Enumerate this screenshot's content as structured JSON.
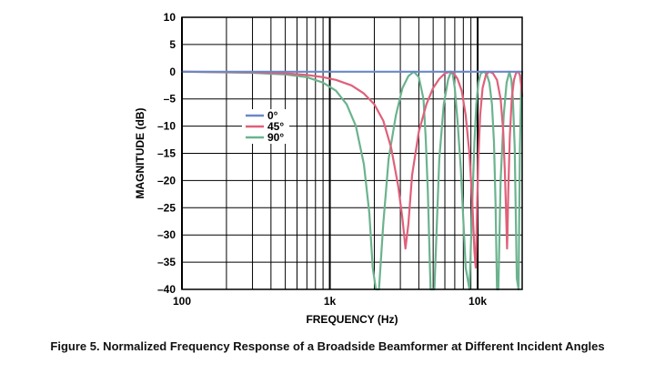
{
  "caption": "Figure 5. Normalized Frequency Response of a Broadside Beamformer at Different Incident Angles",
  "chart_data": {
    "type": "line",
    "xlabel": "FREQUENCY (Hz)",
    "ylabel": "MAGNITUDE (dB)",
    "xscale": "log",
    "xlim": [
      100,
      20000
    ],
    "ylim": [
      -40,
      10
    ],
    "grid": true,
    "legend_position": "center-left",
    "x_tick_labels": [
      {
        "value": 100,
        "label": "100"
      },
      {
        "value": 1000,
        "label": "1k"
      },
      {
        "value": 10000,
        "label": "10k"
      }
    ],
    "y_ticks": [
      10,
      5,
      0,
      -5,
      -10,
      -15,
      -20,
      -25,
      -30,
      -35,
      -40
    ],
    "y_tick_labels": [
      "10",
      "5",
      "0",
      "–5",
      "–10",
      "–15",
      "–20",
      "–25",
      "–30",
      "–35",
      "–40"
    ],
    "series": [
      {
        "name": "0°",
        "color": "#6a88c8",
        "x": [
          100,
          20000
        ],
        "y": [
          0,
          0
        ]
      },
      {
        "name": "45°",
        "color": "#e0607a",
        "x": [
          100,
          300,
          500,
          700,
          900,
          1100,
          1400,
          1700,
          2000,
          2300,
          2600,
          2900,
          3100,
          3250,
          3400,
          3600,
          4000,
          4500,
          5000,
          5500,
          6000,
          6500,
          6900,
          7300,
          7800,
          8300,
          8800,
          9200,
          9500,
          9700,
          9800,
          9900,
          10100,
          10400,
          10800,
          11400,
          12000,
          12700,
          13500,
          14300,
          14900,
          15300,
          15600,
          15800,
          15900,
          16100,
          16500,
          17000,
          17600,
          18200,
          18800,
          19300,
          19700,
          20000
        ],
        "y": [
          0,
          -0.1,
          -0.3,
          -0.6,
          -1.0,
          -1.5,
          -2.5,
          -4.0,
          -6.0,
          -9.0,
          -14.0,
          -21.0,
          -27.0,
          -32.5,
          -28.0,
          -19.0,
          -11.0,
          -6.0,
          -3.0,
          -1.3,
          -0.3,
          0,
          -0.3,
          -1.3,
          -3.5,
          -8.0,
          -15.0,
          -24.0,
          -33.0,
          -36.0,
          -32.0,
          -25.0,
          -16.0,
          -8.0,
          -3.0,
          -0.5,
          0,
          -0.3,
          -1.5,
          -5.0,
          -11.0,
          -19.0,
          -27.0,
          -32.5,
          -30.0,
          -22.0,
          -12.0,
          -5.0,
          -1.5,
          -0.2,
          0,
          -0.6,
          -2.5,
          -4.5
        ]
      },
      {
        "name": "90°",
        "color": "#6bb38e",
        "x": [
          100,
          300,
          500,
          700,
          900,
          1100,
          1300,
          1500,
          1700,
          1850,
          1950,
          2050,
          2150,
          2300,
          2500,
          2800,
          3100,
          3400,
          3700,
          4000,
          4300,
          4450,
          4600,
          4800,
          5100,
          5500,
          5900,
          6300,
          6600,
          6800,
          7000,
          7300,
          7700,
          8300,
          8800,
          9200,
          9500,
          9800,
          10100,
          10500,
          11000,
          11500,
          12000,
          12500,
          12900,
          13200,
          13500,
          13800,
          14300,
          15000,
          15700,
          16400,
          16900,
          17300,
          17800,
          18400,
          18900,
          19300,
          19700,
          20000
        ],
        "y": [
          0,
          -0.2,
          -0.5,
          -1.0,
          -2.0,
          -3.5,
          -6.0,
          -10.0,
          -17.0,
          -26.0,
          -36.0,
          -40.0,
          -40.0,
          -28.0,
          -16.0,
          -8.0,
          -3.0,
          -0.8,
          0,
          -1.0,
          -5.0,
          -12.0,
          -22.0,
          -40.0,
          -40.0,
          -16.0,
          -6.0,
          -1.5,
          0,
          -0.5,
          -3.0,
          -9.0,
          -18.0,
          -36.0,
          -40.0,
          -24.0,
          -13.0,
          -6.0,
          -2.0,
          -0.3,
          0,
          -0.4,
          -2.0,
          -6.0,
          -13.0,
          -24.0,
          -40.0,
          -40.0,
          -20.0,
          -8.0,
          -2.0,
          0,
          -1.5,
          -5.0,
          -14.0,
          -38.0,
          -40.0,
          -14.0,
          -3.0,
          0
        ]
      }
    ]
  }
}
